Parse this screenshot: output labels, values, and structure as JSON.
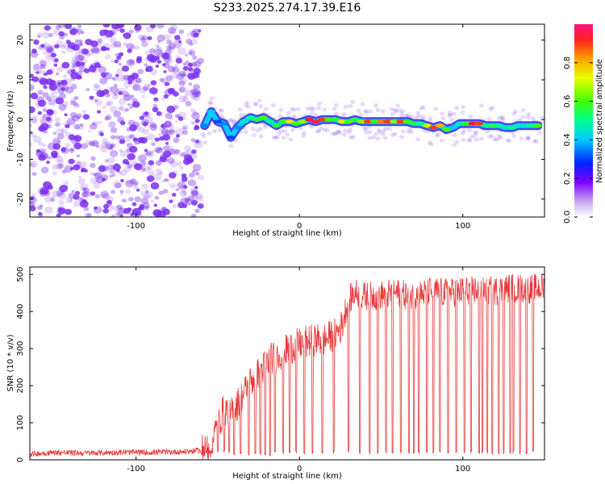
{
  "title": "S233.2025.274.17.39.E16",
  "colors": {
    "signal_line": "#e8393a",
    "axis": "#000000",
    "background": "#ffffff"
  },
  "chart_data": [
    {
      "type": "heatmap",
      "name": "spectrogram",
      "xlabel": "Height of straight line (km)",
      "ylabel": "Frequency (Hz)",
      "xlim": [
        -165,
        150
      ],
      "ylim": [
        -24.5,
        24
      ],
      "x_ticks": [
        -100,
        0,
        100
      ],
      "y_ticks": [
        -20,
        -10,
        0,
        10,
        20
      ],
      "noise_region": {
        "x_start": -165,
        "x_end": -60,
        "color": "#7b2ff0"
      },
      "ridge": {
        "x": [
          -58,
          -54,
          -50,
          -46,
          -42,
          -38,
          -34,
          -30,
          -26,
          -22,
          -18,
          -14,
          -10,
          -6,
          -2,
          2,
          6,
          10,
          14,
          18,
          22,
          26,
          30,
          34,
          38,
          42,
          46,
          50,
          54,
          58,
          62,
          66,
          70,
          74,
          78,
          82,
          86,
          90,
          94,
          98,
          102,
          106,
          110,
          114,
          118,
          122,
          126,
          130,
          134,
          138,
          142,
          146
        ],
        "y": [
          -1.5,
          2.0,
          -0.5,
          -1.0,
          -4.5,
          -2.0,
          -0.5,
          0.5,
          0.0,
          0.5,
          -0.5,
          -1.5,
          -0.5,
          -0.5,
          -1.0,
          -0.5,
          0.0,
          -0.5,
          0.0,
          0.0,
          0.0,
          -0.5,
          -0.5,
          0.0,
          -0.5,
          -0.5,
          -0.5,
          -0.5,
          -0.5,
          -0.5,
          -0.5,
          -0.5,
          -1.0,
          -1.0,
          -1.5,
          -2.0,
          -1.5,
          -2.5,
          -2.0,
          -1.0,
          -1.0,
          -1.0,
          -1.0,
          -1.5,
          -1.5,
          -1.5,
          -2.0,
          -2.0,
          -1.5,
          -1.5,
          -1.5,
          -1.5
        ],
        "amp": [
          0.35,
          0.4,
          0.3,
          0.35,
          0.3,
          0.35,
          0.45,
          0.5,
          0.55,
          0.6,
          0.5,
          0.55,
          0.6,
          0.75,
          0.6,
          0.65,
          0.95,
          0.95,
          0.9,
          0.6,
          0.55,
          0.75,
          0.6,
          0.55,
          0.65,
          0.9,
          0.6,
          0.85,
          0.9,
          0.65,
          0.9,
          0.6,
          0.55,
          0.5,
          0.7,
          0.9,
          0.8,
          0.6,
          0.4,
          0.45,
          0.6,
          0.95,
          0.9,
          0.5,
          0.55,
          0.5,
          0.45,
          0.5,
          0.45,
          0.45,
          0.5,
          0.6
        ]
      },
      "colorbar": {
        "label": "Normalized spectral amplitude",
        "range": [
          0.0,
          1.0
        ],
        "ticks": [
          0.0,
          0.2,
          0.4,
          0.6,
          0.8
        ],
        "tick_labels": [
          "0.0",
          "0.2",
          "0.4",
          "0.6",
          "0.8"
        ]
      }
    },
    {
      "type": "line",
      "name": "snr",
      "xlabel": "Height of straight line (km)",
      "ylabel": "SNR (10 * v/v)",
      "xlim": [
        -165,
        150
      ],
      "ylim": [
        0,
        520
      ],
      "x_ticks": [
        -100,
        0,
        100
      ],
      "y_ticks": [
        0,
        100,
        200,
        300,
        400,
        500
      ],
      "series": [
        {
          "name": "SNR",
          "x": [
            -165,
            -150,
            -130,
            -110,
            -90,
            -70,
            -62,
            -58,
            -54,
            -50,
            -46,
            -42,
            -38,
            -34,
            -30,
            -26,
            -22,
            -18,
            -14,
            -10,
            -6,
            -2,
            2,
            6,
            10,
            14,
            18,
            22,
            26,
            28,
            30,
            32,
            34,
            40,
            50,
            60,
            70,
            80,
            90,
            100,
            110,
            120,
            130,
            140,
            150
          ],
          "y": [
            15,
            20,
            18,
            20,
            20,
            22,
            25,
            30,
            50,
            90,
            140,
            120,
            150,
            180,
            210,
            230,
            250,
            270,
            280,
            290,
            300,
            310,
            315,
            320,
            325,
            320,
            330,
            340,
            360,
            400,
            430,
            440,
            450,
            440,
            445,
            450,
            440,
            455,
            450,
            455,
            460,
            455,
            465,
            460,
            465
          ],
          "dropouts_x": [
            -60,
            -57,
            -54,
            -50,
            -46,
            -43,
            -40,
            -36,
            -31,
            -27,
            -24,
            -21,
            -18,
            -15,
            -10,
            -6,
            -2,
            3,
            8,
            14,
            21,
            30,
            37,
            43,
            48,
            53,
            57,
            62,
            67,
            70,
            73,
            78,
            82,
            86,
            91,
            96,
            101,
            105,
            110,
            112,
            115,
            118,
            122,
            125,
            129,
            131,
            135,
            139,
            143
          ],
          "dropouts_y": [
            10,
            15,
            15,
            20,
            20,
            15,
            10,
            15,
            10,
            10,
            10,
            10,
            10,
            15,
            15,
            15,
            15,
            15,
            15,
            15,
            15,
            15,
            15,
            15,
            15,
            15,
            15,
            15,
            15,
            15,
            15,
            15,
            15,
            15,
            15,
            15,
            15,
            15,
            15,
            15,
            15,
            15,
            15,
            15,
            15,
            15,
            15,
            15,
            15
          ]
        }
      ]
    }
  ]
}
